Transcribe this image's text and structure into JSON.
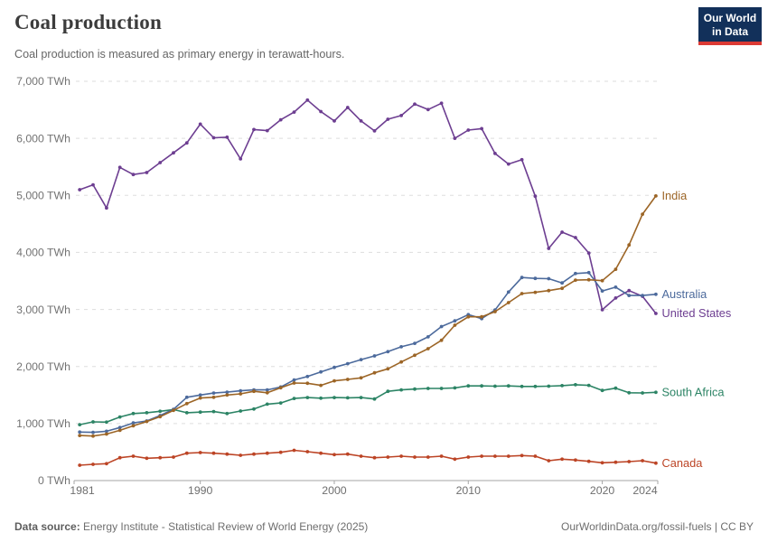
{
  "header": {
    "title": "Coal production",
    "subtitle": "Coal production is measured as primary energy in terawatt-hours."
  },
  "logo": {
    "line1": "Our World",
    "line2": "in Data",
    "bg": "#12305a",
    "accent": "#dc3a34"
  },
  "footer": {
    "source_label": "Data source:",
    "source": "Energy Institute - Statistical Review of World Energy (2025)",
    "link": "OurWorldinData.org/fossil-fuels",
    "separator": "|",
    "license": "CC BY"
  },
  "chart_data": {
    "type": "line",
    "title": "Coal production",
    "unit": "TWh",
    "ylim": [
      0,
      7000
    ],
    "y_ticks": [
      0,
      1000,
      2000,
      3000,
      4000,
      5000,
      6000,
      7000
    ],
    "x_ticks": [
      1981,
      1990,
      2000,
      2010,
      2020,
      2024
    ],
    "grid": "horizontal-dashed",
    "legend_position": "right-of-line-ends",
    "x": [
      1981,
      1982,
      1983,
      1984,
      1985,
      1986,
      1987,
      1988,
      1989,
      1990,
      1991,
      1992,
      1993,
      1994,
      1995,
      1996,
      1997,
      1998,
      1999,
      2000,
      2001,
      2002,
      2003,
      2004,
      2005,
      2006,
      2007,
      2008,
      2009,
      2010,
      2011,
      2012,
      2013,
      2014,
      2015,
      2016,
      2017,
      2018,
      2019,
      2020,
      2021,
      2022,
      2023,
      2024
    ],
    "series": [
      {
        "name": "India",
        "color": "#9c6526",
        "values": [
          790,
          780,
          815,
          880,
          960,
          1035,
          1120,
          1230,
          1350,
          1447,
          1460,
          1500,
          1520,
          1565,
          1540,
          1627,
          1711,
          1706,
          1669,
          1748,
          1774,
          1801,
          1890,
          1959,
          2080,
          2197,
          2312,
          2460,
          2724,
          2872,
          2872,
          2961,
          3120,
          3278,
          3300,
          3330,
          3370,
          3515,
          3520,
          3505,
          3705,
          4130,
          4670,
          4990
        ]
      },
      {
        "name": "Australia",
        "color": "#4c6a9c",
        "values": [
          850,
          845,
          865,
          930,
          1010,
          1045,
          1140,
          1250,
          1460,
          1500,
          1535,
          1550,
          1575,
          1590,
          1590,
          1640,
          1765,
          1825,
          1905,
          1985,
          2050,
          2120,
          2185,
          2260,
          2345,
          2405,
          2520,
          2700,
          2800,
          2910,
          2840,
          2990,
          3305,
          3560,
          3545,
          3540,
          3465,
          3630,
          3645,
          3325,
          3390,
          3245,
          3245,
          3265
        ]
      },
      {
        "name": "United States",
        "color": "#6d3e91",
        "values": [
          5100,
          5185,
          4780,
          5490,
          5365,
          5400,
          5575,
          5745,
          5920,
          6250,
          6010,
          6020,
          5640,
          6155,
          6135,
          6325,
          6460,
          6670,
          6470,
          6305,
          6540,
          6305,
          6130,
          6335,
          6400,
          6600,
          6505,
          6615,
          6000,
          6145,
          6170,
          5735,
          5550,
          5625,
          4985,
          4070,
          4355,
          4260,
          3990,
          2995,
          3200,
          3330,
          3230,
          2930
        ]
      },
      {
        "name": "South Africa",
        "color": "#2c8465",
        "values": [
          980,
          1030,
          1025,
          1115,
          1175,
          1190,
          1215,
          1245,
          1190,
          1200,
          1210,
          1175,
          1220,
          1255,
          1340,
          1360,
          1440,
          1455,
          1445,
          1455,
          1450,
          1455,
          1430,
          1565,
          1590,
          1605,
          1615,
          1615,
          1625,
          1660,
          1660,
          1655,
          1660,
          1650,
          1650,
          1655,
          1665,
          1680,
          1670,
          1580,
          1620,
          1540,
          1536,
          1547
        ]
      },
      {
        "name": "Canada",
        "color": "#bc4425",
        "values": [
          270,
          285,
          296,
          401,
          428,
          391,
          401,
          412,
          480,
          491,
          480,
          464,
          443,
          464,
          480,
          496,
          530,
          507,
          480,
          454,
          464,
          428,
          401,
          412,
          428,
          412,
          412,
          428,
          375,
          412,
          428,
          428,
          428,
          439,
          428,
          348,
          375,
          359,
          338,
          312,
          322,
          333,
          348,
          306
        ]
      }
    ]
  }
}
